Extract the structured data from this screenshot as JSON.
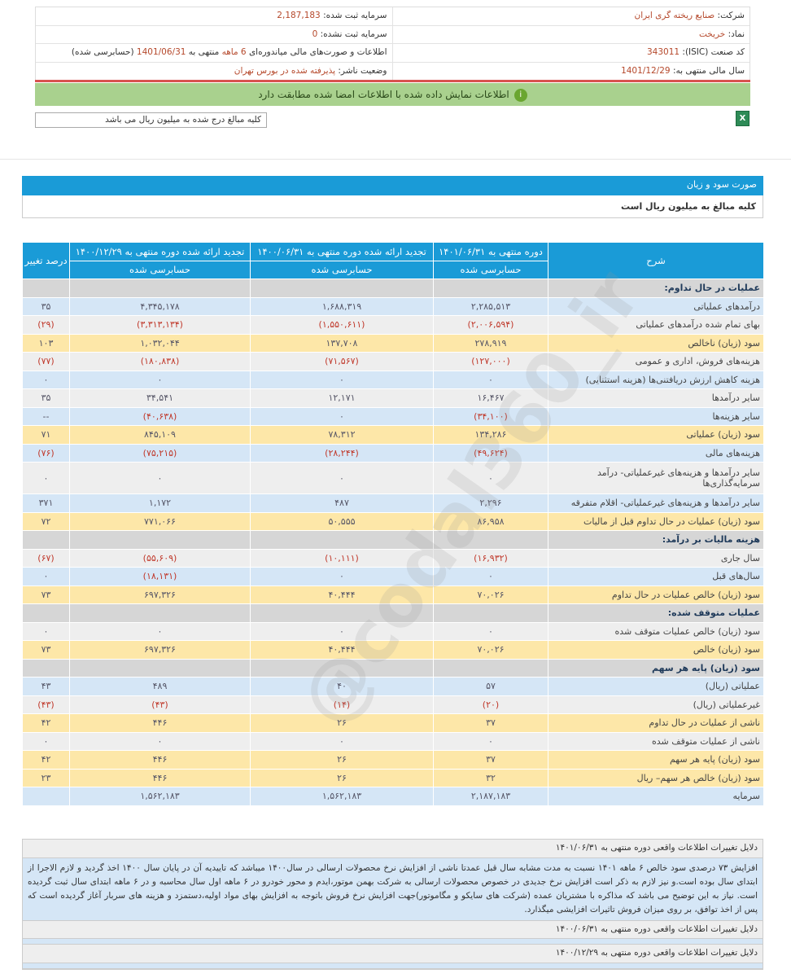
{
  "info": {
    "company_label": "شرکت:",
    "company": "صنایع ریخته گری ایران",
    "symbol_label": "نماد:",
    "symbol": "خریخت",
    "isic_label": "کد صنعت (ISIC):",
    "isic": "343011",
    "fiscal_label": "سال مالی منتهی به:",
    "fiscal": "1401/12/29",
    "reg_capital_label": "سرمایه ثبت شده:",
    "reg_capital": "2,187,183",
    "unreg_capital_label": "سرمایه ثبت نشده:",
    "unreg_capital": "0",
    "report_label": "اطلاعات و صورت‌های مالی میاندوره‌ای",
    "report_period": "6 ماهه",
    "report_mid": "منتهی به",
    "report_date": "1401/06/31",
    "report_status": "(حسابرسی شده)",
    "publisher_label": "وضعیت ناشر:",
    "publisher": "پذیرفته شده در بورس تهران"
  },
  "alert": {
    "text": "اطلاعات نمایش داده شده با اطلاعات امضا شده مطابقت دارد",
    "icon": "info-icon",
    "color": "#a9d18e"
  },
  "unit_note": "کلیه مبالغ درج شده به میلیون ریال می باشد",
  "excel_icon": "excel-export-icon",
  "section": {
    "title": "صورت سود و زیان",
    "subtitle": "کلیه مبالغ به میلیون ریال است"
  },
  "watermark": "@codal360_ir",
  "table": {
    "headers": [
      "شرح",
      "دوره منتهی به ۱۴۰۱/۰۶/۳۱",
      "تجدید ارائه شده دوره منتهی به ۱۴۰۰/۰۶/۳۱",
      "تجدید ارائه شده دوره منتهی به ۱۴۰۰/۱۲/۲۹",
      "درصد تغییر"
    ],
    "subheaders": [
      "حسابرسی شده",
      "حسابرسی شده",
      "حسابرسی شده"
    ],
    "rows": [
      {
        "kind": "cat",
        "cells": [
          "عملیات در حال تداوم:",
          "",
          "",
          "",
          ""
        ]
      },
      {
        "kind": "blue",
        "cells": [
          "درآمدهای عملیاتی",
          "۲,۲۸۵,۵۱۳",
          "۱,۶۸۸,۳۱۹",
          "۴,۳۴۵,۱۷۸",
          "۳۵"
        ]
      },
      {
        "kind": "gray",
        "cells": [
          "بهای تمام شده درآمدهای عملیاتی",
          "(۲,۰۰۶,۵۹۴)",
          "(۱,۵۵۰,۶۱۱)",
          "(۳,۳۱۳,۱۳۴)",
          "(۲۹)"
        ]
      },
      {
        "kind": "yellow",
        "cells": [
          "سود (زیان) ناخالص",
          "۲۷۸,۹۱۹",
          "۱۳۷,۷۰۸",
          "۱,۰۳۲,۰۴۴",
          "۱۰۳"
        ]
      },
      {
        "kind": "gray",
        "cells": [
          "هزینه‌های فروش، اداری و عمومی",
          "(۱۲۷,۰۰۰)",
          "(۷۱,۵۶۷)",
          "(۱۸۰,۸۳۸)",
          "(۷۷)"
        ]
      },
      {
        "kind": "blue",
        "cells": [
          "هزینه کاهش ارزش دریافتنی‌ها (هزینه استثنایی)",
          "۰",
          "۰",
          "۰",
          "۰"
        ]
      },
      {
        "kind": "gray",
        "cells": [
          "سایر درآمدها",
          "۱۶,۴۶۷",
          "۱۲,۱۷۱",
          "۳۴,۵۴۱",
          "۳۵"
        ]
      },
      {
        "kind": "blue",
        "cells": [
          "سایر هزینه‌ها",
          "(۳۴,۱۰۰)",
          "۰",
          "(۴۰,۶۳۸)",
          "--"
        ]
      },
      {
        "kind": "yellow",
        "cells": [
          "سود (زیان) عملیاتی",
          "۱۳۴,۲۸۶",
          "۷۸,۳۱۲",
          "۸۴۵,۱۰۹",
          "۷۱"
        ]
      },
      {
        "kind": "blue",
        "cells": [
          "هزینه‌های مالی",
          "(۴۹,۶۲۴)",
          "(۲۸,۲۴۴)",
          "(۷۵,۲۱۵)",
          "(۷۶)"
        ]
      },
      {
        "kind": "gray tall",
        "cells": [
          "سایر درآمدها و هزینه‌های غیرعملیاتی- درآمد سرمایه‌گذاری‌ها",
          "۰",
          "۰",
          "۰",
          "۰"
        ]
      },
      {
        "kind": "blue",
        "cells": [
          "سایر درآمدها و هزینه‌های غیرعملیاتی- اقلام متفرقه",
          "۲,۲۹۶",
          "۴۸۷",
          "۱,۱۷۲",
          "۳۷۱"
        ]
      },
      {
        "kind": "yellow",
        "cells": [
          "سود (زیان) عملیات در حال تداوم قبل از مالیات",
          "۸۶,۹۵۸",
          "۵۰,۵۵۵",
          "۷۷۱,۰۶۶",
          "۷۲"
        ]
      },
      {
        "kind": "cat",
        "cells": [
          "هزینه مالیات بر درآمد:",
          "",
          "",
          "",
          ""
        ]
      },
      {
        "kind": "gray",
        "cells": [
          "سال جاری",
          "(۱۶,۹۳۲)",
          "(۱۰,۱۱۱)",
          "(۵۵,۶۰۹)",
          "(۶۷)"
        ]
      },
      {
        "kind": "blue",
        "cells": [
          "سال‌های قبل",
          "۰",
          "۰",
          "(۱۸,۱۳۱)",
          "۰"
        ]
      },
      {
        "kind": "yellow",
        "cells": [
          "سود (زیان) خالص عملیات در حال تداوم",
          "۷۰,۰۲۶",
          "۴۰,۴۴۴",
          "۶۹۷,۳۲۶",
          "۷۳"
        ]
      },
      {
        "kind": "cat",
        "cells": [
          "عملیات متوقف شده:",
          "",
          "",
          "",
          ""
        ]
      },
      {
        "kind": "gray",
        "cells": [
          "سود (زیان) خالص عملیات متوقف شده",
          "۰",
          "۰",
          "۰",
          "۰"
        ]
      },
      {
        "kind": "yellow",
        "cells": [
          "سود (زیان) خالص",
          "۷۰,۰۲۶",
          "۴۰,۴۴۴",
          "۶۹۷,۳۲۶",
          "۷۳"
        ]
      },
      {
        "kind": "cat",
        "cells": [
          "سود (زیان) پایه هر سهم",
          "",
          "",
          "",
          ""
        ]
      },
      {
        "kind": "blue",
        "cells": [
          "عملیاتی (ریال)",
          "۵۷",
          "۴۰",
          "۴۸۹",
          "۴۳"
        ]
      },
      {
        "kind": "gray",
        "cells": [
          "غیرعملیاتی (ریال)",
          "(۲۰)",
          "(۱۴)",
          "(۴۳)",
          "(۴۳)"
        ]
      },
      {
        "kind": "yellow",
        "cells": [
          "ناشی از عملیات در حال تداوم",
          "۳۷",
          "۲۶",
          "۴۴۶",
          "۴۲"
        ]
      },
      {
        "kind": "gray",
        "cells": [
          "ناشی از عملیات متوقف شده",
          "۰",
          "۰",
          "۰",
          "۰"
        ]
      },
      {
        "kind": "yellow",
        "cells": [
          "سود (زیان) پایه هر سهم",
          "۳۷",
          "۲۶",
          "۴۴۶",
          "۴۲"
        ]
      },
      {
        "kind": "yellow",
        "cells": [
          "سود (زیان) خالص هر سهم– ریال",
          "۳۲",
          "۲۶",
          "۴۴۶",
          "۲۳"
        ]
      },
      {
        "kind": "blue",
        "cells": [
          "سرمایه",
          "۲,۱۸۷,۱۸۳",
          "۱,۵۶۲,۱۸۳",
          "۱,۵۶۲,۱۸۳",
          ""
        ]
      }
    ]
  },
  "notes": {
    "h1": "دلایل تغییرات اطلاعات واقعی دوره منتهی به ۱۴۰۱/۰۶/۳۱",
    "p1": "افزایش ۷۳ درصدی سود خالص ۶ ماهه ۱۴۰۱ نسبت به مدت مشابه سال قبل عمدتا ناشی از افزایش نرخ محصولات ارسالی در سال۱۴۰۰ میباشد که تاییدیه آن در پایان سال ۱۴۰۰ اخذ گردید و لازم الاجرا از ابتدای سال بوده است.و نیز لازم به ذکر است افزایش نرخ جدیدی در خصوص محصولات ارسالی به شرکت بهمن موتور،ایدم و محور خودرو در ۶ ماهه اول سال محاسبه و در ۶ ماهه ابتدای سال ثبت گردیده است. نیاز به این توضیح می باشد که مذاکره با مشتریان عمده (شرکت های سایکو و مگاموتور)جهت افزایش نرخ فروش باتوجه به افزایش بهای مواد اولیه،دستمزد و هزینه های سربار آغاز گردیده است که پس از اخذ توافق، بر روی میزان فروش تاثیرات افزایشی میگذارد.",
    "h2": "دلایل تغییرات اطلاعات واقعی دوره منتهی به ۱۴۰۰/۰۶/۳۱",
    "h3": "دلایل تغییرات اطلاعات واقعی دوره منتهی به ۱۴۰۰/۱۲/۲۹"
  }
}
